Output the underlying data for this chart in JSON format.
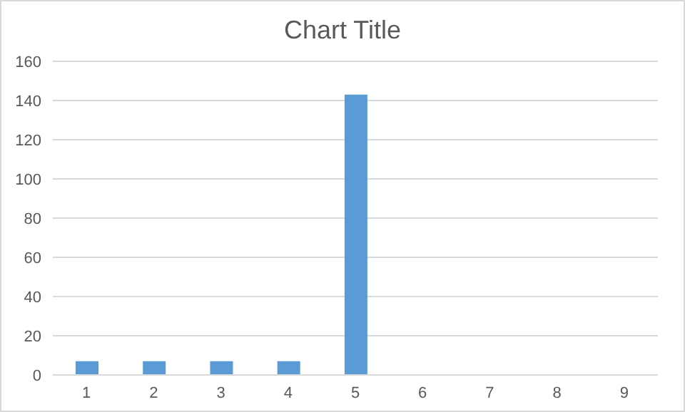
{
  "chart_data": {
    "type": "bar",
    "title": "Chart Title",
    "categories": [
      "1",
      "2",
      "3",
      "4",
      "5",
      "6",
      "7",
      "8",
      "9"
    ],
    "values": [
      7,
      7,
      7,
      7,
      143,
      0,
      0,
      0,
      0
    ],
    "color": "#5b9bd5",
    "ylim": [
      0,
      160
    ],
    "yticks": [
      0,
      20,
      40,
      60,
      80,
      100,
      120,
      140,
      160
    ],
    "grid": "y"
  }
}
